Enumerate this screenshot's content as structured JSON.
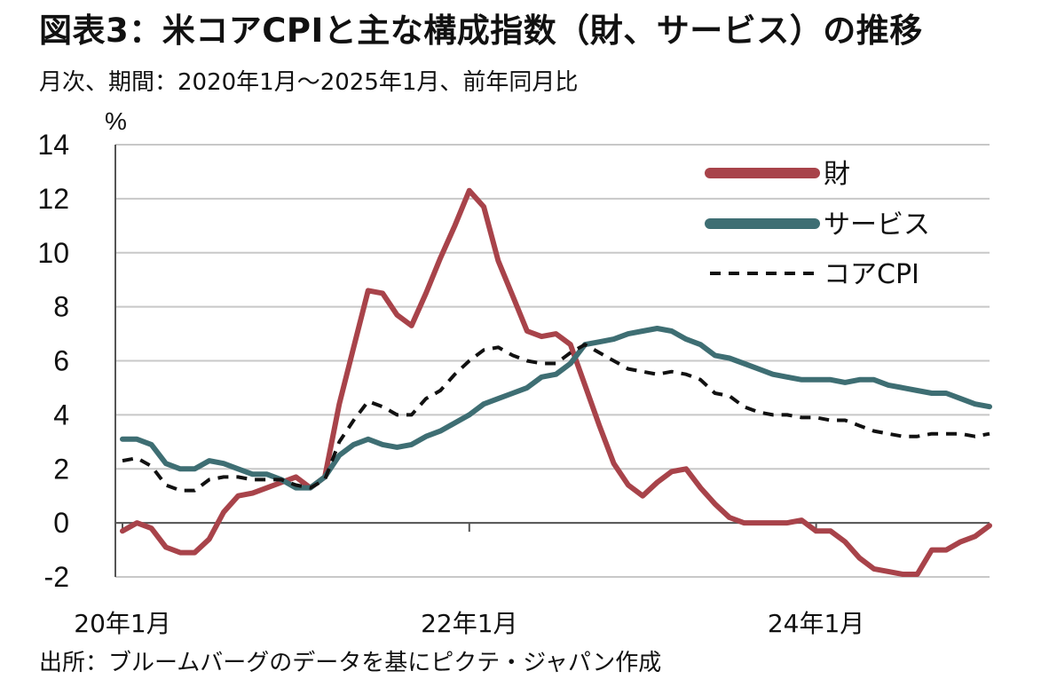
{
  "header": {
    "title": "図表3：米コアCPIと主な構成指数（財、サービス）の推移",
    "subtitle": "月次、期間：2020年1月～2025年1月、前年同月比"
  },
  "footer": {
    "source": "出所：ブルームバーグのデータを基にピクテ・ジャパン作成"
  },
  "colors": {
    "goods": "#a8434a",
    "services": "#3e6e73",
    "core": "#111111",
    "grid": "#c8c8c8",
    "axis": "#555555"
  },
  "chart_data": {
    "type": "line",
    "ylabel": "%",
    "ylim": [
      -2,
      14
    ],
    "yticks": [
      14,
      12,
      10,
      8,
      6,
      4,
      2,
      0,
      -2
    ],
    "ytick_labels": [
      "14",
      "12",
      "10",
      "8",
      "6",
      "4",
      "2",
      "0",
      "-2"
    ],
    "xticks": [
      {
        "label": "20年1月",
        "index": 0
      },
      {
        "label": "22年1月",
        "index": 24
      },
      {
        "label": "24年1月",
        "index": 48
      }
    ],
    "x": [
      "2020-01",
      "2020-02",
      "2020-03",
      "2020-04",
      "2020-05",
      "2020-06",
      "2020-07",
      "2020-08",
      "2020-09",
      "2020-10",
      "2020-11",
      "2020-12",
      "2021-01",
      "2021-02",
      "2021-03",
      "2021-04",
      "2021-05",
      "2021-06",
      "2021-07",
      "2021-08",
      "2021-09",
      "2021-10",
      "2021-11",
      "2021-12",
      "2022-01",
      "2022-02",
      "2022-03",
      "2022-04",
      "2022-05",
      "2022-06",
      "2022-07",
      "2022-08",
      "2022-09",
      "2022-10",
      "2022-11",
      "2022-12",
      "2023-01",
      "2023-02",
      "2023-03",
      "2023-04",
      "2023-05",
      "2023-06",
      "2023-07",
      "2023-08",
      "2023-09",
      "2023-10",
      "2023-11",
      "2023-12",
      "2024-01",
      "2024-02",
      "2024-03",
      "2024-04",
      "2024-05",
      "2024-06",
      "2024-07",
      "2024-08",
      "2024-09",
      "2024-10",
      "2024-11",
      "2024-12",
      "2025-01"
    ],
    "legend_position": "top-right",
    "grid": true,
    "series": [
      {
        "name": "財",
        "key": "goods",
        "style": "solid",
        "values": [
          -0.3,
          0.0,
          -0.2,
          -0.9,
          -1.1,
          -1.1,
          -0.6,
          0.4,
          1.0,
          1.1,
          1.3,
          1.5,
          1.7,
          1.3,
          1.7,
          4.4,
          6.5,
          8.6,
          8.5,
          7.7,
          7.3,
          8.5,
          9.8,
          11.0,
          12.3,
          11.7,
          9.7,
          8.4,
          7.1,
          6.9,
          7.0,
          6.6,
          5.1,
          3.6,
          2.2,
          1.4,
          1.0,
          1.5,
          1.9,
          2.0,
          1.3,
          0.7,
          0.2,
          0.0,
          0.0,
          0.0,
          0.0,
          0.1,
          -0.3,
          -0.3,
          -0.7,
          -1.3,
          -1.7,
          -1.8,
          -1.9,
          -1.9,
          -1.0,
          -1.0,
          -0.7,
          -0.5,
          -0.1
        ]
      },
      {
        "name": "サービス",
        "key": "services",
        "style": "solid",
        "values": [
          3.1,
          3.1,
          2.9,
          2.2,
          2.0,
          2.0,
          2.3,
          2.2,
          2.0,
          1.8,
          1.8,
          1.6,
          1.3,
          1.3,
          1.7,
          2.5,
          2.9,
          3.1,
          2.9,
          2.8,
          2.9,
          3.2,
          3.4,
          3.7,
          4.0,
          4.4,
          4.6,
          4.8,
          5.0,
          5.4,
          5.5,
          5.9,
          6.6,
          6.7,
          6.8,
          7.0,
          7.1,
          7.2,
          7.1,
          6.8,
          6.6,
          6.2,
          6.1,
          5.9,
          5.7,
          5.5,
          5.4,
          5.3,
          5.3,
          5.3,
          5.2,
          5.3,
          5.3,
          5.1,
          5.0,
          4.9,
          4.8,
          4.8,
          4.6,
          4.4,
          4.3
        ]
      },
      {
        "name": "コアCPI",
        "key": "core",
        "style": "dashed",
        "values": [
          2.3,
          2.4,
          2.1,
          1.4,
          1.2,
          1.2,
          1.6,
          1.7,
          1.7,
          1.6,
          1.6,
          1.6,
          1.4,
          1.3,
          1.6,
          3.0,
          3.8,
          4.5,
          4.3,
          4.0,
          4.0,
          4.6,
          4.9,
          5.5,
          6.0,
          6.4,
          6.5,
          6.2,
          6.0,
          5.9,
          5.9,
          6.3,
          6.6,
          6.3,
          6.0,
          5.7,
          5.6,
          5.5,
          5.6,
          5.5,
          5.3,
          4.8,
          4.7,
          4.3,
          4.1,
          4.0,
          4.0,
          3.9,
          3.9,
          3.8,
          3.8,
          3.6,
          3.4,
          3.3,
          3.2,
          3.2,
          3.3,
          3.3,
          3.3,
          3.2,
          3.3
        ]
      }
    ]
  }
}
